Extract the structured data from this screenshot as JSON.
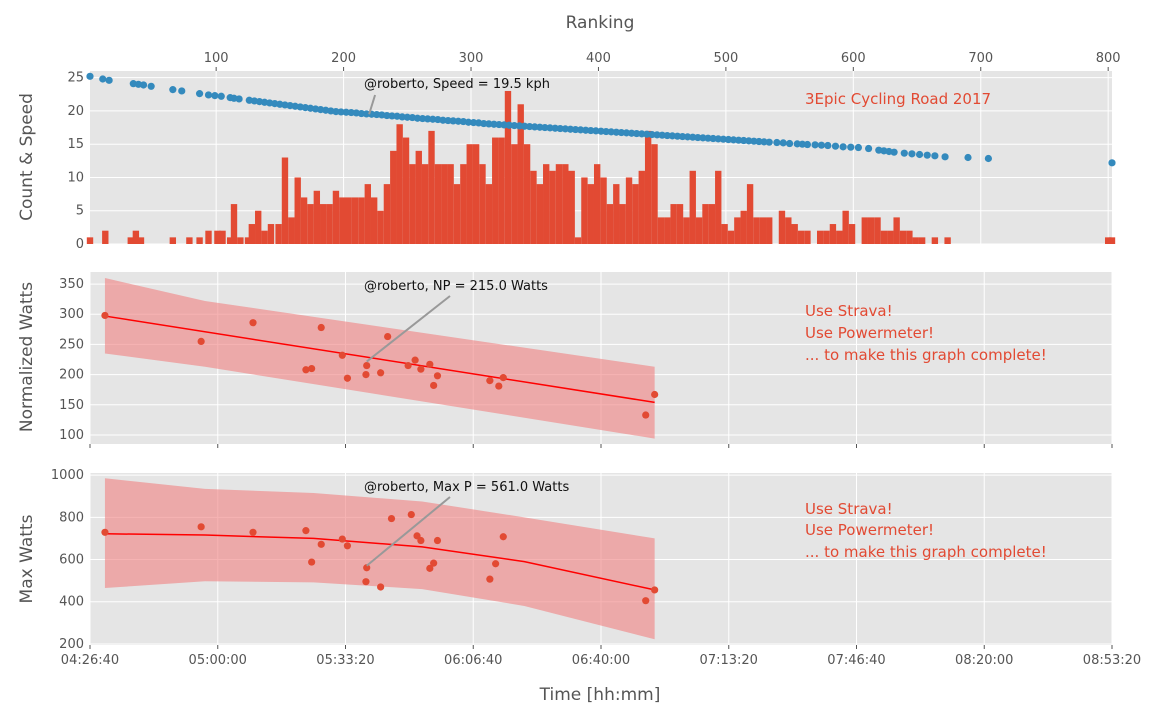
{
  "chart_data": [
    {
      "type": "bar",
      "panel": "top",
      "ylabel": "Count & Speed",
      "top_xlabel": "Ranking",
      "ylim": [
        0,
        26
      ],
      "yticks": [
        0,
        5,
        10,
        15,
        20,
        25
      ],
      "x_time_range_s": [
        16000,
        32000
      ],
      "ranking_range": [
        1,
        803
      ],
      "ranking_ticks": [
        100,
        200,
        300,
        400,
        500,
        600,
        700,
        800
      ],
      "title_text": "3Epic Cycling Road 2017",
      "annotation": "@roberto, Speed = 19.5 kph",
      "annotation_target": {
        "ranking": 220,
        "value": 19.5
      },
      "bar_color": "#e24a33",
      "speed_color": "#348abd",
      "bars": [
        [
          1,
          1
        ],
        [
          13,
          2
        ],
        [
          33,
          1
        ],
        [
          37,
          2
        ],
        [
          41,
          1
        ],
        [
          66,
          1
        ],
        [
          79,
          1
        ],
        [
          87,
          1
        ],
        [
          94,
          2
        ],
        [
          101,
          2
        ],
        [
          105,
          2
        ],
        [
          111,
          1
        ],
        [
          114,
          6
        ],
        [
          119,
          1
        ],
        [
          125,
          1
        ],
        [
          128,
          3
        ],
        [
          133,
          5
        ],
        [
          138,
          2
        ],
        [
          143,
          3
        ],
        [
          149,
          3
        ],
        [
          154,
          13
        ],
        [
          159,
          4
        ],
        [
          164,
          10
        ],
        [
          169,
          7
        ],
        [
          174,
          6
        ],
        [
          179,
          8
        ],
        [
          184,
          6
        ],
        [
          189,
          6
        ],
        [
          194,
          8
        ],
        [
          199,
          7
        ],
        [
          204,
          7
        ],
        [
          209,
          7
        ],
        [
          214,
          7
        ],
        [
          219,
          9
        ],
        [
          224,
          7
        ],
        [
          229,
          5
        ],
        [
          234,
          9
        ],
        [
          239,
          14
        ],
        [
          244,
          18
        ],
        [
          249,
          16
        ],
        [
          254,
          12
        ],
        [
          259,
          14
        ],
        [
          264,
          12
        ],
        [
          269,
          17
        ],
        [
          274,
          12
        ],
        [
          279,
          12
        ],
        [
          284,
          12
        ],
        [
          289,
          9
        ],
        [
          294,
          12
        ],
        [
          299,
          15
        ],
        [
          304,
          15
        ],
        [
          309,
          12
        ],
        [
          314,
          9
        ],
        [
          319,
          16
        ],
        [
          324,
          16
        ],
        [
          329,
          23
        ],
        [
          334,
          15
        ],
        [
          339,
          21
        ],
        [
          344,
          15
        ],
        [
          349,
          11
        ],
        [
          354,
          9
        ],
        [
          359,
          12
        ],
        [
          364,
          11
        ],
        [
          369,
          12
        ],
        [
          374,
          12
        ],
        [
          379,
          11
        ],
        [
          384,
          1
        ],
        [
          389,
          10
        ],
        [
          394,
          9
        ],
        [
          399,
          12
        ],
        [
          404,
          10
        ],
        [
          409,
          6
        ],
        [
          414,
          9
        ],
        [
          419,
          6
        ],
        [
          424,
          10
        ],
        [
          429,
          9
        ],
        [
          434,
          11
        ],
        [
          439,
          17
        ],
        [
          444,
          15
        ],
        [
          449,
          4
        ],
        [
          454,
          4
        ],
        [
          459,
          6
        ],
        [
          464,
          6
        ],
        [
          469,
          4
        ],
        [
          474,
          11
        ],
        [
          479,
          4
        ],
        [
          484,
          6
        ],
        [
          489,
          6
        ],
        [
          494,
          11
        ],
        [
          499,
          3
        ],
        [
          504,
          2
        ],
        [
          509,
          4
        ],
        [
          514,
          5
        ],
        [
          519,
          9
        ],
        [
          524,
          4
        ],
        [
          529,
          4
        ],
        [
          534,
          4
        ],
        [
          544,
          5
        ],
        [
          549,
          4
        ],
        [
          554,
          3
        ],
        [
          559,
          2
        ],
        [
          564,
          2
        ],
        [
          574,
          2
        ],
        [
          579,
          2
        ],
        [
          584,
          3
        ],
        [
          589,
          2
        ],
        [
          594,
          5
        ],
        [
          599,
          3
        ],
        [
          609,
          4
        ],
        [
          614,
          4
        ],
        [
          619,
          4
        ],
        [
          624,
          2
        ],
        [
          629,
          2
        ],
        [
          634,
          4
        ],
        [
          639,
          2
        ],
        [
          644,
          2
        ],
        [
          649,
          1
        ],
        [
          654,
          1
        ],
        [
          664,
          1
        ],
        [
          674,
          1
        ],
        [
          800,
          1
        ],
        [
          803,
          1
        ]
      ],
      "speed_points": [
        [
          1,
          25.2
        ],
        [
          11,
          24.8
        ],
        [
          16,
          24.6
        ],
        [
          35,
          24.1
        ],
        [
          39,
          24.0
        ],
        [
          43,
          23.9
        ],
        [
          49,
          23.7
        ],
        [
          66,
          23.2
        ],
        [
          73,
          23.0
        ],
        [
          87,
          22.6
        ],
        [
          94,
          22.4
        ],
        [
          99,
          22.3
        ],
        [
          104,
          22.2
        ],
        [
          111,
          22.0
        ],
        [
          114,
          21.9
        ],
        [
          118,
          21.8
        ],
        [
          126,
          21.6
        ],
        [
          130,
          21.5
        ],
        [
          134,
          21.4
        ],
        [
          138,
          21.3
        ],
        [
          142,
          21.2
        ],
        [
          146,
          21.1
        ],
        [
          150,
          21.0
        ],
        [
          154,
          20.9
        ],
        [
          158,
          20.8
        ],
        [
          162,
          20.7
        ],
        [
          166,
          20.6
        ],
        [
          170,
          20.5
        ],
        [
          174,
          20.4
        ],
        [
          178,
          20.3
        ],
        [
          182,
          20.2
        ],
        [
          186,
          20.1
        ],
        [
          190,
          20.0
        ],
        [
          194,
          19.9
        ],
        [
          198,
          19.85
        ],
        [
          202,
          19.8
        ],
        [
          206,
          19.75
        ],
        [
          210,
          19.7
        ],
        [
          214,
          19.6
        ],
        [
          218,
          19.55
        ],
        [
          222,
          19.5
        ],
        [
          226,
          19.45
        ],
        [
          230,
          19.4
        ],
        [
          234,
          19.3
        ],
        [
          238,
          19.25
        ],
        [
          242,
          19.2
        ],
        [
          246,
          19.1
        ],
        [
          250,
          19.05
        ],
        [
          254,
          19.0
        ],
        [
          258,
          18.9
        ],
        [
          262,
          18.85
        ],
        [
          266,
          18.8
        ],
        [
          270,
          18.75
        ],
        [
          274,
          18.7
        ],
        [
          278,
          18.6
        ],
        [
          282,
          18.55
        ],
        [
          286,
          18.5
        ],
        [
          290,
          18.45
        ],
        [
          294,
          18.4
        ],
        [
          298,
          18.3
        ],
        [
          302,
          18.25
        ],
        [
          306,
          18.2
        ],
        [
          310,
          18.1
        ],
        [
          314,
          18.05
        ],
        [
          318,
          18.0
        ],
        [
          322,
          17.95
        ],
        [
          326,
          17.9
        ],
        [
          330,
          17.85
        ],
        [
          334,
          17.8
        ],
        [
          338,
          17.75
        ],
        [
          342,
          17.7
        ],
        [
          346,
          17.65
        ],
        [
          350,
          17.6
        ],
        [
          354,
          17.55
        ],
        [
          358,
          17.5
        ],
        [
          362,
          17.45
        ],
        [
          366,
          17.4
        ],
        [
          370,
          17.35
        ],
        [
          374,
          17.3
        ],
        [
          378,
          17.25
        ],
        [
          382,
          17.2
        ],
        [
          386,
          17.15
        ],
        [
          390,
          17.1
        ],
        [
          394,
          17.05
        ],
        [
          398,
          17.0
        ],
        [
          402,
          16.95
        ],
        [
          406,
          16.9
        ],
        [
          410,
          16.85
        ],
        [
          414,
          16.8
        ],
        [
          418,
          16.75
        ],
        [
          422,
          16.7
        ],
        [
          426,
          16.65
        ],
        [
          430,
          16.6
        ],
        [
          434,
          16.55
        ],
        [
          438,
          16.5
        ],
        [
          442,
          16.45
        ],
        [
          446,
          16.4
        ],
        [
          450,
          16.35
        ],
        [
          454,
          16.3
        ],
        [
          458,
          16.25
        ],
        [
          462,
          16.2
        ],
        [
          466,
          16.15
        ],
        [
          470,
          16.1
        ],
        [
          474,
          16.05
        ],
        [
          478,
          16.0
        ],
        [
          482,
          15.95
        ],
        [
          486,
          15.9
        ],
        [
          490,
          15.85
        ],
        [
          494,
          15.8
        ],
        [
          498,
          15.75
        ],
        [
          502,
          15.7
        ],
        [
          506,
          15.65
        ],
        [
          510,
          15.6
        ],
        [
          514,
          15.55
        ],
        [
          518,
          15.5
        ],
        [
          522,
          15.45
        ],
        [
          526,
          15.4
        ],
        [
          530,
          15.35
        ],
        [
          534,
          15.3
        ],
        [
          540,
          15.25
        ],
        [
          545,
          15.2
        ],
        [
          550,
          15.1
        ],
        [
          556,
          15.05
        ],
        [
          560,
          15.0
        ],
        [
          564,
          14.95
        ],
        [
          570,
          14.9
        ],
        [
          575,
          14.85
        ],
        [
          580,
          14.8
        ],
        [
          586,
          14.7
        ],
        [
          592,
          14.6
        ],
        [
          598,
          14.55
        ],
        [
          604,
          14.5
        ],
        [
          612,
          14.35
        ],
        [
          620,
          14.1
        ],
        [
          624,
          14.0
        ],
        [
          628,
          13.9
        ],
        [
          632,
          13.8
        ],
        [
          640,
          13.65
        ],
        [
          646,
          13.55
        ],
        [
          652,
          13.45
        ],
        [
          658,
          13.35
        ],
        [
          664,
          13.25
        ],
        [
          672,
          13.1
        ],
        [
          690,
          13.0
        ],
        [
          706,
          12.85
        ],
        [
          803,
          12.2
        ]
      ]
    },
    {
      "type": "scatter",
      "panel": "middle",
      "ylabel": "Normalized Watts",
      "ylim": [
        85,
        370
      ],
      "yticks": [
        100,
        150,
        200,
        250,
        300,
        350
      ],
      "x_time_range_s": [
        16000,
        32000
      ],
      "annotation": "@roberto, NP = 215.0 Watts",
      "annotation_target": {
        "time_s": 20332,
        "value": 215.0
      },
      "notes": [
        "Use Strava!",
        "Use Powermeter!",
        "... to make this graph complete!"
      ],
      "points": [
        [
          16234,
          298
        ],
        [
          17740,
          255
        ],
        [
          18552,
          286
        ],
        [
          19380,
          208
        ],
        [
          19470,
          210
        ],
        [
          19620,
          278
        ],
        [
          19950,
          232
        ],
        [
          20030,
          194
        ],
        [
          20320,
          200
        ],
        [
          20332,
          215
        ],
        [
          20550,
          203
        ],
        [
          20660,
          263
        ],
        [
          20980,
          215
        ],
        [
          21090,
          224
        ],
        [
          21180,
          209
        ],
        [
          21320,
          217
        ],
        [
          21380,
          182
        ],
        [
          21440,
          198
        ],
        [
          22260,
          190
        ],
        [
          22400,
          181
        ],
        [
          22470,
          195
        ],
        [
          24700,
          133
        ],
        [
          24840,
          167
        ]
      ],
      "fit_line": [
        [
          16234,
          297
        ],
        [
          24840,
          154
        ]
      ],
      "band_upper": [
        [
          16234,
          360
        ],
        [
          17800,
          322
        ],
        [
          24840,
          213
        ]
      ],
      "band_lower": [
        [
          16234,
          235
        ],
        [
          17800,
          213
        ],
        [
          24840,
          94
        ]
      ]
    },
    {
      "type": "scatter",
      "panel": "bottom",
      "ylabel": "Max Watts",
      "xlabel": "Time [hh:mm]",
      "ylim": [
        195,
        1010
      ],
      "yticks": [
        200,
        400,
        600,
        800,
        1000
      ],
      "x_time_range_s": [
        16000,
        32000
      ],
      "xticks_s": [
        16000,
        18000,
        20000,
        22000,
        24000,
        26000,
        28000,
        30000,
        32000
      ],
      "xtick_labels": [
        "04:26:40",
        "05:00:00",
        "05:33:20",
        "06:06:40",
        "06:40:00",
        "07:13:20",
        "07:46:40",
        "08:20:00",
        "08:53:20"
      ],
      "annotation": "@roberto, Max P = 561.0 Watts",
      "annotation_target": {
        "time_s": 20332,
        "value": 561.0
      },
      "notes": [
        "Use Strava!",
        "Use Powermeter!",
        "... to make this graph complete!"
      ],
      "points": [
        [
          16234,
          729
        ],
        [
          17740,
          755
        ],
        [
          18552,
          729
        ],
        [
          19380,
          737
        ],
        [
          19470,
          588
        ],
        [
          19620,
          672
        ],
        [
          19950,
          697
        ],
        [
          20030,
          665
        ],
        [
          20320,
          495
        ],
        [
          20332,
          561
        ],
        [
          20550,
          470
        ],
        [
          20720,
          794
        ],
        [
          21030,
          813
        ],
        [
          21120,
          712
        ],
        [
          21180,
          690
        ],
        [
          21320,
          558
        ],
        [
          21380,
          583
        ],
        [
          21440,
          690
        ],
        [
          22260,
          507
        ],
        [
          22350,
          580
        ],
        [
          22470,
          708
        ],
        [
          24700,
          405
        ],
        [
          24840,
          456
        ]
      ],
      "fit_line": [
        [
          16234,
          722
        ],
        [
          17800,
          716
        ],
        [
          19500,
          700
        ],
        [
          21200,
          660
        ],
        [
          22800,
          590
        ],
        [
          24840,
          456
        ]
      ],
      "band_upper": [
        [
          16234,
          985
        ],
        [
          17800,
          935
        ],
        [
          19500,
          915
        ],
        [
          21200,
          875
        ],
        [
          22800,
          800
        ],
        [
          24840,
          700
        ]
      ],
      "band_lower": [
        [
          16234,
          465
        ],
        [
          17800,
          497
        ],
        [
          19500,
          492
        ],
        [
          21200,
          460
        ],
        [
          22800,
          380
        ],
        [
          24840,
          222
        ]
      ]
    }
  ]
}
